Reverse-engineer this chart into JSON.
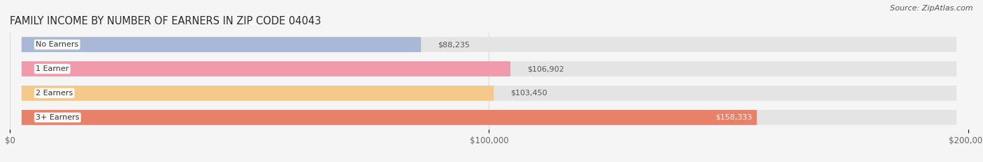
{
  "title": "FAMILY INCOME BY NUMBER OF EARNERS IN ZIP CODE 04043",
  "source": "Source: ZipAtlas.com",
  "categories": [
    "No Earners",
    "1 Earner",
    "2 Earners",
    "3+ Earners"
  ],
  "values": [
    88235,
    106902,
    103450,
    158333
  ],
  "bar_colors": [
    "#aab8d8",
    "#f09aac",
    "#f5c98a",
    "#e8806a"
  ],
  "bar_bg_color": "#e4e4e4",
  "background_color": "#f5f5f5",
  "xlim": [
    0,
    200000
  ],
  "xticks": [
    0,
    100000,
    200000
  ],
  "xtick_labels": [
    "$0",
    "$100,000",
    "$200,000"
  ],
  "title_fontsize": 10.5,
  "source_fontsize": 8,
  "label_fontsize": 8,
  "value_fontsize": 8,
  "bar_height": 0.62,
  "label_text_color": "#333333",
  "value_color_outside": "#555555",
  "value_color_inside": "#ffffff"
}
